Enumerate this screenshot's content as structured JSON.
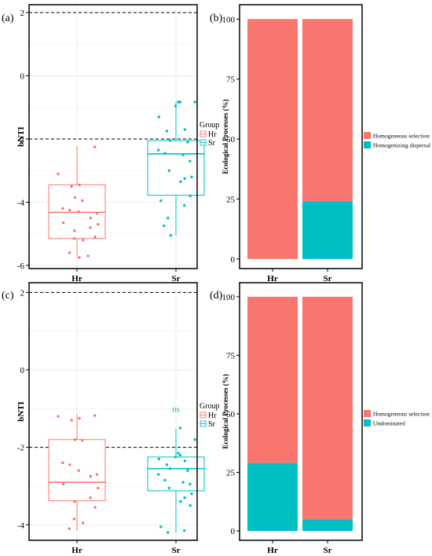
{
  "colors": {
    "hr": "#F8766D",
    "sr": "#00BFC4",
    "stack_top": "#F8766D",
    "stack_bottom": "#00BFC4",
    "grid": "#e6e6e6",
    "dashed": "#000000"
  },
  "chart_data": [
    {
      "panel_label": "(a)",
      "type": "box",
      "ylabel": "bNTI",
      "categories": [
        "Hr",
        "Sr"
      ],
      "yticks": [
        -6,
        -4,
        -2,
        0,
        2
      ],
      "ylim": [
        -6.1,
        2.25
      ],
      "reference_lines": [
        2,
        -2
      ],
      "legend": {
        "title": "Group",
        "entries": [
          "Hr",
          "Sr"
        ],
        "placement": "right"
      },
      "annotation": "",
      "boxes": [
        {
          "name": "Hr",
          "q1": -5.15,
          "median": -4.32,
          "q3": -3.45,
          "whisker_low": -5.75,
          "whisker_high": -2.22,
          "points": [
            -2.25,
            -3.1,
            -3.45,
            -3.5,
            -3.85,
            -3.95,
            -4.2,
            -4.25,
            -4.3,
            -4.35,
            -4.5,
            -4.65,
            -4.7,
            -4.8,
            -4.9,
            -5.1,
            -5.15,
            -5.2,
            -5.6,
            -5.7,
            -5.75
          ]
        },
        {
          "name": "Sr",
          "q1": -3.78,
          "median": -2.47,
          "q3": -2.05,
          "whisker_low": -5.05,
          "whisker_high": -0.83,
          "points": [
            -0.83,
            -0.83,
            -0.83,
            -0.83,
            -0.95,
            -1.3,
            -1.7,
            -1.75,
            -2.05,
            -2.1,
            -2.35,
            -2.45,
            -2.5,
            -2.7,
            -3.0,
            -3.2,
            -3.25,
            -3.35,
            -3.8,
            -3.95,
            -4.1,
            -4.5,
            -4.75,
            -5.05
          ]
        }
      ]
    },
    {
      "panel_label": "(b)",
      "type": "bar",
      "stacked": true,
      "ylabel": "Ecological Processes (%)",
      "categories": [
        "Hr",
        "Sr"
      ],
      "yticks": [
        0,
        25,
        50,
        75,
        100
      ],
      "ylim": [
        -4,
        106
      ],
      "series": [
        {
          "name": "Homogenizing dispersal",
          "values": [
            0,
            24
          ]
        },
        {
          "name": "Homogeneous selection",
          "values": [
            100,
            76
          ]
        }
      ],
      "legend": {
        "entries": [
          "Homogeneous selection",
          "Homogenizing dispersal"
        ],
        "placement": "right"
      }
    },
    {
      "panel_label": "(c)",
      "type": "box",
      "ylabel": "bNTI",
      "categories": [
        "Hr",
        "Sr"
      ],
      "yticks": [
        -4,
        -2,
        0,
        2
      ],
      "ylim": [
        -4.4,
        2.25
      ],
      "reference_lines": [
        2,
        -2
      ],
      "legend": {
        "title": "Group",
        "entries": [
          "Hr",
          "Sr"
        ],
        "placement": "right"
      },
      "annotation": "ns",
      "boxes": [
        {
          "name": "Hr",
          "q1": -3.38,
          "median": -2.9,
          "q3": -1.8,
          "whisker_low": -4.15,
          "whisker_high": -1.15,
          "points": [
            -1.18,
            -1.2,
            -1.25,
            -1.3,
            -1.8,
            -1.82,
            -2.4,
            -2.45,
            -2.6,
            -2.7,
            -2.75,
            -2.95,
            -3.05,
            -3.3,
            -3.4,
            -3.55,
            -3.85,
            -3.95,
            -4.1
          ]
        },
        {
          "name": "Sr",
          "q1": -3.12,
          "median": -2.55,
          "q3": -2.25,
          "whisker_low": -4.2,
          "whisker_high": -1.52,
          "points": [
            -1.5,
            -1.8,
            -2.15,
            -2.2,
            -2.25,
            -2.3,
            -2.35,
            -2.45,
            -2.55,
            -2.6,
            -2.7,
            -2.85,
            -2.9,
            -2.95,
            -3.05,
            -3.2,
            -3.3,
            -3.4,
            -3.5,
            -4.05,
            -4.15,
            -4.2
          ]
        }
      ]
    },
    {
      "panel_label": "(d)",
      "type": "bar",
      "stacked": true,
      "ylabel": "Ecological Processes (%)",
      "categories": [
        "Hr",
        "Sr"
      ],
      "yticks": [
        0,
        25,
        50,
        75,
        100
      ],
      "ylim": [
        -4,
        106
      ],
      "series": [
        {
          "name": "Undominated",
          "values": [
            29,
            5
          ]
        },
        {
          "name": "Homogeneous selection",
          "values": [
            71,
            95
          ]
        }
      ],
      "legend": {
        "entries": [
          "Homogeneous selection",
          "Undominated"
        ],
        "placement": "right"
      }
    }
  ]
}
